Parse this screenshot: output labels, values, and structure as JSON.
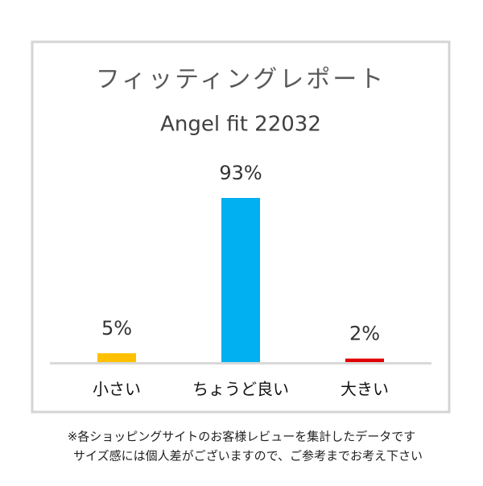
{
  "chart_data": {
    "type": "bar",
    "title": "フィッティングレポート",
    "subtitle": "Angel fit 22032",
    "categories": [
      "小さい",
      "ちょうど良い",
      "大きい"
    ],
    "values": [
      5,
      93,
      2
    ],
    "value_labels": [
      "5%",
      "93%",
      "2%"
    ],
    "colors": [
      "#ffc000",
      "#00b0f0",
      "#e00000"
    ],
    "notes": [
      "※各ショッピングサイトのお客様レビューを集計したデータです",
      "サイズ感には個人差がございますので、ご参考までお考え下さい"
    ]
  }
}
